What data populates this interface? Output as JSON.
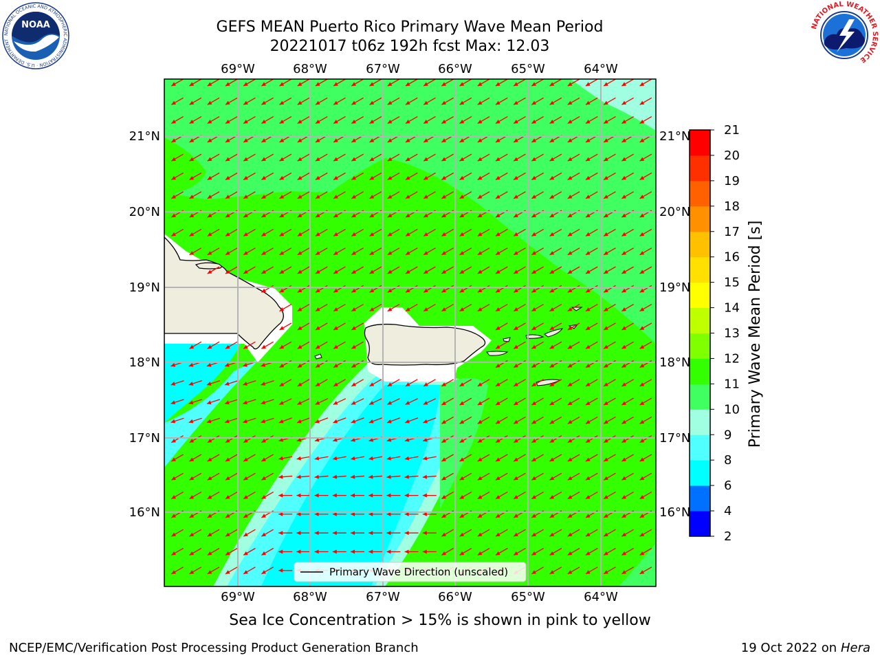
{
  "header": {
    "title_line1": "GEFS MEAN Puerto Rico Primary Wave Mean Period",
    "title_line2": "20221017 t06z 192h fcst   Max: 12.03"
  },
  "logos": {
    "left": "NOAA",
    "left_ring_text": "NATIONAL OCEANIC AND ATMOSPHERIC ADMINISTRATION · U.S. DEPARTMENT OF COMMERCE",
    "right": "NATIONAL WEATHER SERVICE"
  },
  "map": {
    "lon_labels": [
      "69°W",
      "68°W",
      "67°W",
      "66°W",
      "65°W",
      "64°W"
    ],
    "lat_labels": [
      "21°N",
      "20°N",
      "19°N",
      "18°N",
      "17°N",
      "16°N"
    ],
    "legend_label": "Primary Wave Direction (unscaled)",
    "land_color": "#efedde",
    "arrow_color": "#ff0000",
    "primary_direction": "toward southwest (from northeast)"
  },
  "colorbar": {
    "label": "Primary Wave Mean Period [s]",
    "ticks": [
      "2",
      "4",
      "6",
      "8",
      "9",
      "10",
      "11",
      "12",
      "13",
      "14",
      "15",
      "16",
      "17",
      "18",
      "19",
      "20",
      "21"
    ],
    "colors": [
      "#0000ff",
      "#0070ff",
      "#00ffff",
      "#50ffff",
      "#a0ffe0",
      "#40ff60",
      "#33ff00",
      "#80ff00",
      "#c0ff00",
      "#ffff00",
      "#ffe000",
      "#ffc000",
      "#ff9000",
      "#ff6000",
      "#ff3000",
      "#ff0000"
    ]
  },
  "captions": {
    "sea_ice_note": "Sea Ice Concentration > 15% is shown in pink to yellow",
    "footer_left": "NCEP/EMC/Verification Post Processing Product Generation Branch",
    "footer_date": "19 Oct 2022 on",
    "footer_machine": "Hera"
  }
}
